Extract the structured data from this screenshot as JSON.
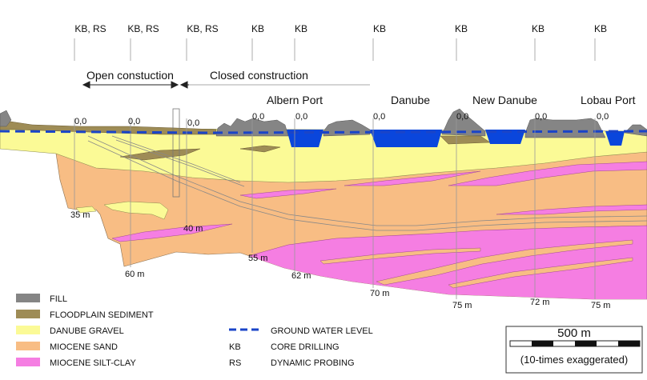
{
  "boreholes": [
    {
      "label": "KB, RS",
      "ground": "0,0"
    },
    {
      "label": "KB, RS",
      "ground": "0,0"
    },
    {
      "label": "KB, RS",
      "ground": "0,0"
    },
    {
      "label": "KB",
      "ground": "0,0"
    },
    {
      "label": "KB",
      "ground": "0,0"
    },
    {
      "label": "KB",
      "ground": "0,0"
    },
    {
      "label": "KB",
      "ground": "0,0"
    },
    {
      "label": "KB",
      "ground": "0,0"
    },
    {
      "label": "KB",
      "ground": "0,0"
    }
  ],
  "construction": {
    "open": "Open constuction",
    "closed": "Closed construction"
  },
  "places": {
    "albern_port": "Albern Port",
    "danube": "Danube",
    "new_danube": "New Danube",
    "lobau_port": "Lobau Port"
  },
  "depths": [
    "35 m",
    "40 m",
    "60 m",
    "55 m",
    "62 m",
    "70 m",
    "75 m",
    "72 m",
    "75 m"
  ],
  "legend": {
    "materials": [
      {
        "label": "FILL",
        "color": "#858585"
      },
      {
        "label": "FLOODPLAIN SEDIMENT",
        "color": "#9e8c56"
      },
      {
        "label": "DANUBE GRAVEL",
        "color": "#fbfa96"
      },
      {
        "label": "MIOCENE SAND",
        "color": "#f8bd84"
      },
      {
        "label": "MIOCENE SILT-CLAY",
        "color": "#f57ee2"
      }
    ],
    "ground_water": "GROUND WATER LEVEL",
    "kb_abbr": "KB",
    "kb_desc": "CORE DRILLING",
    "rs_abbr": "RS",
    "rs_desc": "DYNAMIC PROBING"
  },
  "scale": {
    "label": "500 m",
    "note": "(10-times exaggerated)"
  },
  "colors": {
    "water": "#0a46dc",
    "groundwater_line": "#1a44c8"
  }
}
